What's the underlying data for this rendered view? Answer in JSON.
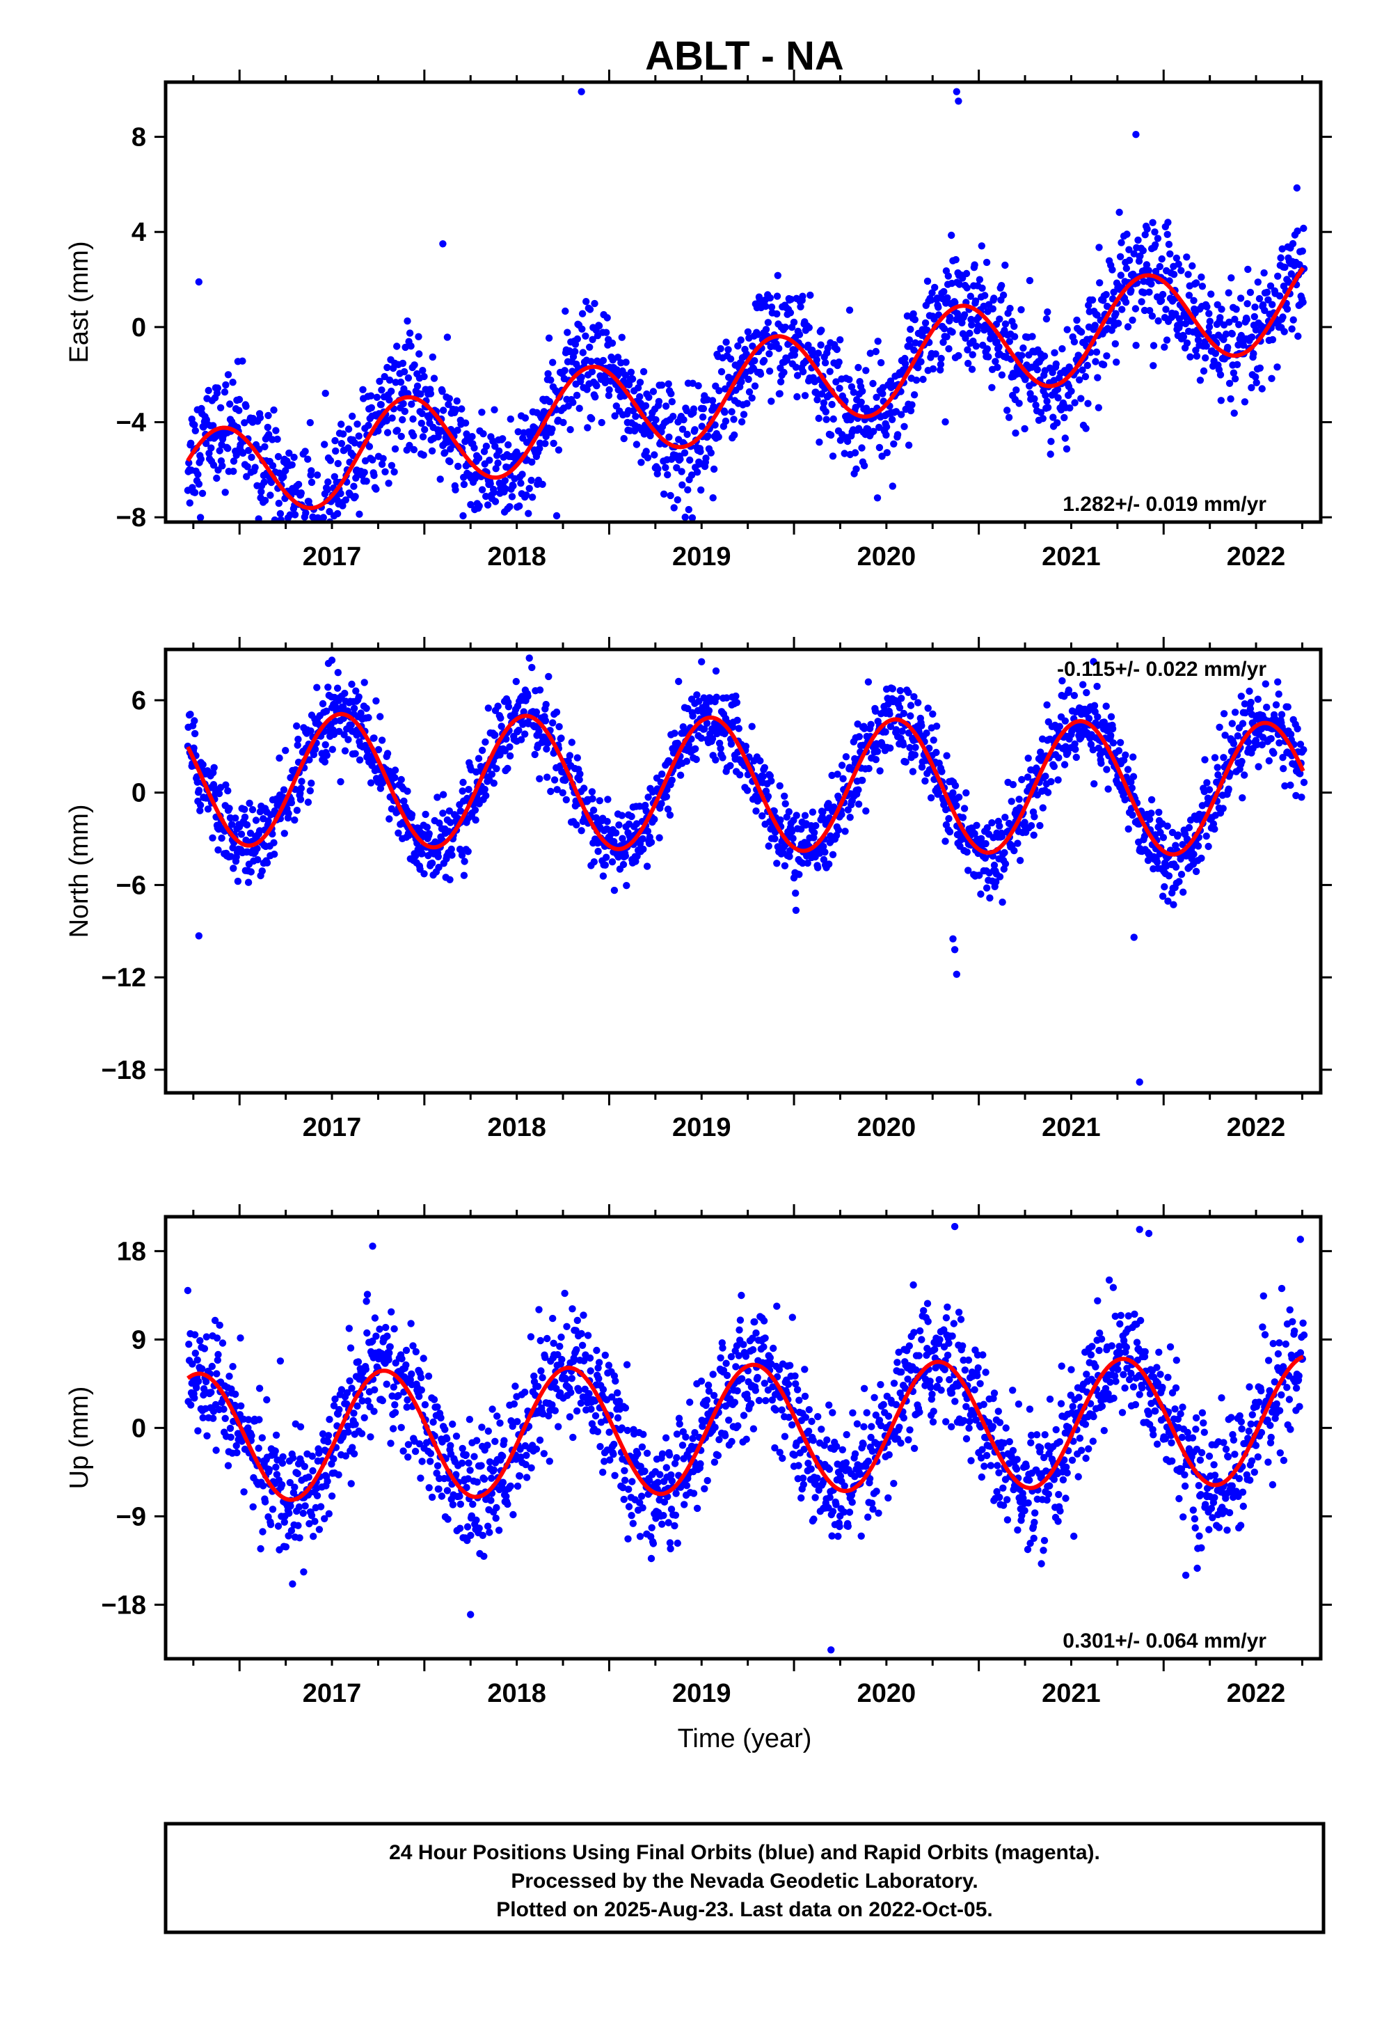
{
  "title": "ABLT - NA",
  "xlabel": "Time (year)",
  "footer": [
    "24 Hour Positions Using Final Orbits (blue) and Rapid Orbits (magenta).",
    "Processed by the Nevada Geodetic Laboratory.",
    "Plotted on 2025-Aug-23. Last data on 2022-Oct-05."
  ],
  "colors": {
    "points": "#0000ff",
    "fit": "#ff0000",
    "frame": "#000000"
  },
  "chart_data": [
    {
      "type": "scatter",
      "ylabel": "East (mm)",
      "rate": "1.282+/- 0.019 mm/yr",
      "rate_position": "bottom-right",
      "xlim": [
        2016.6,
        2022.85
      ],
      "ylim": [
        -8.2,
        10.3
      ],
      "yticks": [
        -8,
        -4,
        0,
        4,
        8
      ],
      "xticks": [
        2017,
        2018,
        2019,
        2020,
        2021,
        2022
      ],
      "grid": false,
      "model": {
        "offset": -6.5,
        "trend_per_year": 1.282,
        "annual_amplitude": 2.0,
        "annual_peak_phase": 0.9,
        "t0": 2016.7
      },
      "noise_sd": 1.2,
      "outliers": [
        [
          2018.85,
          9.9
        ],
        [
          2020.88,
          9.9
        ],
        [
          2020.89,
          9.5
        ],
        [
          2021.85,
          8.1
        ],
        [
          2018.1,
          3.5
        ],
        [
          2016.78,
          1.9
        ]
      ]
    },
    {
      "type": "scatter",
      "ylabel": "North (mm)",
      "rate": "-0.115+/- 0.022 mm/yr",
      "rate_position": "top-right",
      "xlim": [
        2016.6,
        2022.85
      ],
      "ylim": [
        -19.5,
        9.3
      ],
      "yticks": [
        -18,
        -12,
        -6,
        0,
        6
      ],
      "xticks": [
        2017,
        2018,
        2019,
        2020,
        2021,
        2022
      ],
      "grid": false,
      "model": {
        "offset": 0.9,
        "trend_per_year": -0.115,
        "annual_amplitude": 4.3,
        "annual_peak_phase": 0.55,
        "t0": 2016.7
      },
      "noise_sd": 1.3,
      "outliers": [
        [
          2016.78,
          -9.3
        ],
        [
          2020.86,
          -9.5
        ],
        [
          2020.87,
          -10.2
        ],
        [
          2020.88,
          -11.8
        ],
        [
          2021.87,
          -18.8
        ],
        [
          2021.84,
          -9.4
        ],
        [
          2017.5,
          8.6
        ],
        [
          2019.5,
          8.5
        ]
      ]
    },
    {
      "type": "scatter",
      "ylabel": "Up (mm)",
      "rate": "0.301+/- 0.064 mm/yr",
      "rate_position": "bottom-right",
      "xlim": [
        2016.6,
        2022.85
      ],
      "ylim": [
        -23.5,
        21.5
      ],
      "yticks": [
        -18,
        -9,
        0,
        9,
        18
      ],
      "xticks": [
        2017,
        2018,
        2019,
        2020,
        2021,
        2022
      ],
      "grid": false,
      "model": {
        "offset": -1.0,
        "trend_per_year": 0.301,
        "annual_amplitude": 6.5,
        "annual_peak_phase": 0.78,
        "t0": 2016.7
      },
      "noise_sd": 3.2,
      "outliers": [
        [
          2020.87,
          20.5
        ],
        [
          2021.87,
          20.2
        ],
        [
          2021.92,
          19.8
        ],
        [
          2022.74,
          19.2
        ],
        [
          2017.72,
          18.5
        ],
        [
          2020.2,
          -22.6
        ],
        [
          2018.25,
          -19.0
        ],
        [
          2022.12,
          -15.0
        ]
      ]
    }
  ]
}
